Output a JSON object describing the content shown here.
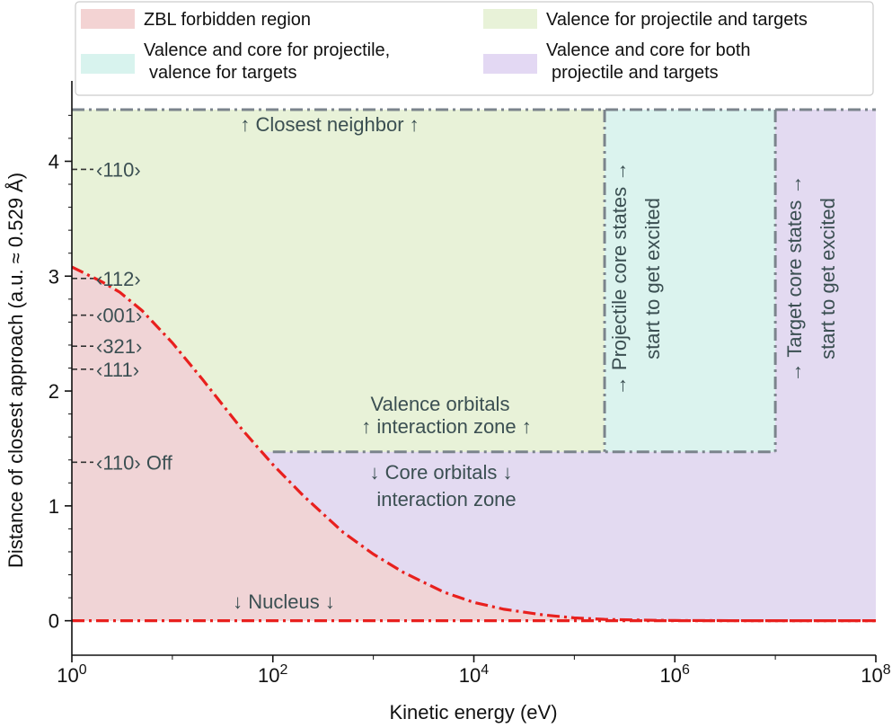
{
  "chart_data": {
    "type": "area",
    "xlabel": "Kinetic energy (eV)",
    "ylabel": "Distance of closest approach (a.u. ≈ 0.529 Å)",
    "xscale": "log",
    "xlim": [
      1,
      100000000
    ],
    "ylim": [
      -0.3,
      4.7
    ],
    "grid": false,
    "legend_position": "top",
    "x_ticks": [
      {
        "value": 1,
        "base": "10",
        "exp": "0"
      },
      {
        "value": 100,
        "base": "10",
        "exp": "2"
      },
      {
        "value": 10000,
        "base": "10",
        "exp": "4"
      },
      {
        "value": 1000000,
        "base": "10",
        "exp": "6"
      },
      {
        "value": 100000000,
        "base": "10",
        "exp": "8"
      }
    ],
    "y_ticks": [
      {
        "value": 0,
        "label": "0"
      },
      {
        "value": 1,
        "label": "1"
      },
      {
        "value": 2,
        "label": "2"
      },
      {
        "value": 3,
        "label": "3"
      },
      {
        "value": 4,
        "label": "4"
      }
    ],
    "regions": [
      {
        "name": "Valence for projectile and targets",
        "color": "#e8f2d8",
        "x_range": [
          1,
          200000
        ],
        "y_range": [
          1.47,
          4.45
        ]
      },
      {
        "name": "Valence and core for projectile, valence for targets",
        "color": "#dbf3ee",
        "x_range": [
          200000,
          10000000
        ],
        "y_range": [
          1.47,
          4.45
        ]
      },
      {
        "name": "Valence and core for both projectile and targets",
        "color": "#e3daf1",
        "x_range": [
          1,
          100000000
        ],
        "y_range": [
          0,
          4.45
        ]
      }
    ],
    "series": [
      {
        "name": "ZBL forbidden region",
        "color": "#f0d4d6",
        "line_color": "#e8201e",
        "x": [
          1,
          2,
          3,
          5,
          10,
          20,
          50,
          100,
          200,
          500,
          1000,
          2000,
          5000,
          10000,
          20000,
          50000,
          100000,
          200000,
          500000,
          1000000,
          10000000,
          100000000
        ],
        "y": [
          3.08,
          2.95,
          2.86,
          2.7,
          2.42,
          2.1,
          1.66,
          1.36,
          1.09,
          0.77,
          0.58,
          0.42,
          0.25,
          0.16,
          0.1,
          0.05,
          0.025,
          0.012,
          0.005,
          0.002,
          0.0,
          0.0
        ]
      }
    ],
    "reference_lines": [
      {
        "label": "‹110›",
        "y": 3.93
      },
      {
        "label": "‹112›",
        "y": 2.98
      },
      {
        "label": "‹001›",
        "y": 2.66
      },
      {
        "label": "‹321›",
        "y": 2.39
      },
      {
        "label": "‹111›",
        "y": 2.19
      },
      {
        "label": "‹110› Off",
        "y": 1.38
      }
    ],
    "legend": [
      {
        "label": "ZBL forbidden region",
        "color": "#f3d3d3"
      },
      {
        "label": "Valence for projectile and targets",
        "color": "#e8f2d8"
      },
      {
        "label_lines": [
          "Valence and core for projectile,",
          "valence for targets"
        ],
        "color": "#d8f3ee"
      },
      {
        "label_lines": [
          "Valence and core for both",
          "projectile and targets"
        ],
        "color": "#e3d8f3"
      }
    ],
    "annotations": {
      "closest_neighbor": "↑  Closest neighbor  ↑",
      "valence_zone": [
        "Valence orbitals",
        "↑  interaction zone  ↑"
      ],
      "core_zone": [
        "↓  Core orbitals  ↓",
        "interaction zone"
      ],
      "nucleus": "↓  Nucleus  ↓",
      "projectile_core": [
        "→  Projectile core states  →",
        "start to get excited"
      ],
      "target_core": [
        "→  Target core states  →",
        "start to get excited"
      ]
    }
  }
}
